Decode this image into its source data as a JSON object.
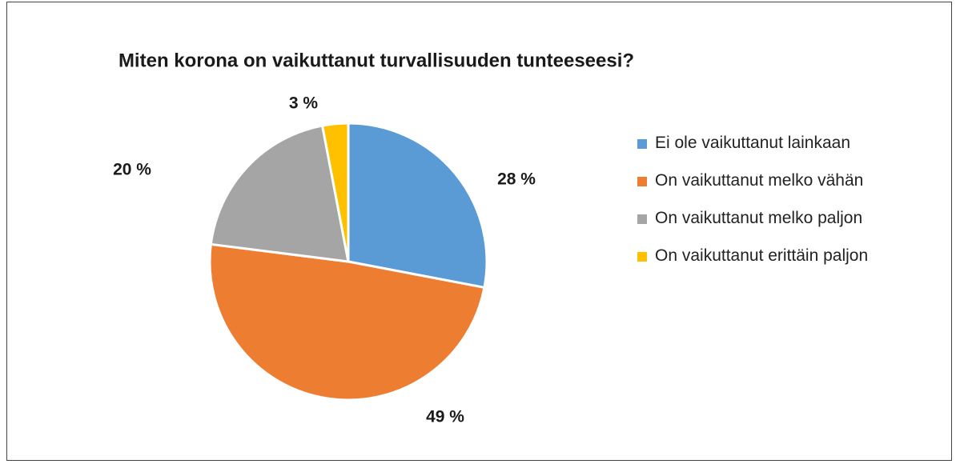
{
  "chart_data": {
    "type": "pie",
    "title": "Miten korona on vaikuttanut turvallisuuden tunteeseesi?",
    "categories": [
      "Ei ole vaikuttanut lainkaan",
      "On vaikuttanut melko vähän",
      "On vaikuttanut melko paljon",
      "On vaikuttanut erittäin paljon"
    ],
    "values": [
      28,
      49,
      20,
      3
    ],
    "value_labels": [
      "28 %",
      "49 %",
      "20 %",
      "3 %"
    ],
    "colors": [
      "#5b9bd5",
      "#ed7d31",
      "#a5a5a5",
      "#ffc000"
    ],
    "legend": "right"
  }
}
